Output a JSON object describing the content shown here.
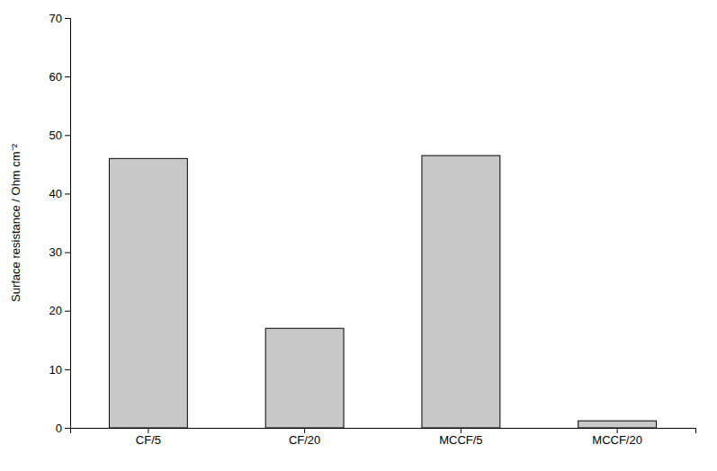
{
  "chart_data": {
    "type": "bar",
    "ylabel": "Surface resistance / Ohm cm⁻²",
    "categories": [
      "CF/5",
      "CF/20",
      "MCCF/5",
      "MCCF/20"
    ],
    "values": [
      46.0,
      17.0,
      46.5,
      1.2
    ],
    "color": "#c8c8c8",
    "ylim": [
      0,
      70
    ],
    "yticks": [
      0,
      10,
      20,
      30,
      40,
      50,
      60,
      70
    ],
    "grid": false
  }
}
